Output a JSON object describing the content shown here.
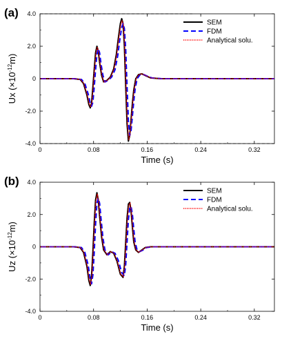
{
  "chart_data": [
    {
      "type": "line",
      "panel_label": "(a)",
      "xlabel": "Time (s)",
      "ylabel": "Ux (×10",
      "ylabel_exp": "-12",
      "ylabel_unit": "m)",
      "xlim": [
        0,
        0.35
      ],
      "ylim": [
        -4.0,
        4.0
      ],
      "xticks": [
        0,
        0.08,
        0.16,
        0.24,
        0.32
      ],
      "xtick_labels": [
        "0",
        "0.08",
        "0.16",
        "0.24",
        "0.32"
      ],
      "yticks": [
        -4.0,
        -2.0,
        0,
        2.0,
        4.0
      ],
      "ytick_labels": [
        "-4.0",
        "-2.0",
        "0",
        "2.0",
        "4.0"
      ],
      "legend_position": "top-right",
      "series": [
        {
          "name": "SEM",
          "color": "#000000",
          "style": "solid",
          "dt": 0,
          "x": [
            0,
            0.05,
            0.06,
            0.065,
            0.07,
            0.073,
            0.075,
            0.077,
            0.079,
            0.081,
            0.083,
            0.085,
            0.087,
            0.089,
            0.092,
            0.095,
            0.1,
            0.105,
            0.11,
            0.114,
            0.117,
            0.12,
            0.122,
            0.124,
            0.126,
            0.128,
            0.13,
            0.132,
            0.134,
            0.136,
            0.138,
            0.14,
            0.143,
            0.147,
            0.152,
            0.157,
            0.165,
            0.18,
            0.2,
            0.35
          ],
          "y": [
            0,
            0,
            -0.05,
            -0.3,
            -1.0,
            -1.6,
            -1.8,
            -1.5,
            -0.5,
            0.6,
            1.6,
            2.0,
            1.7,
            1.0,
            0.2,
            -0.2,
            -0.1,
            0.1,
            0.6,
            1.5,
            2.5,
            3.4,
            3.7,
            3.4,
            2.0,
            -0.5,
            -2.8,
            -3.85,
            -3.5,
            -2.5,
            -1.5,
            -0.7,
            0,
            0.25,
            0.3,
            0.2,
            0.05,
            0,
            0,
            0
          ]
        },
        {
          "name": "FDM",
          "color": "#0000ff",
          "style": "dashed",
          "dt": 0.002,
          "x": [
            0,
            0.05,
            0.06,
            0.065,
            0.07,
            0.073,
            0.075,
            0.077,
            0.079,
            0.081,
            0.083,
            0.085,
            0.087,
            0.089,
            0.092,
            0.095,
            0.1,
            0.105,
            0.11,
            0.114,
            0.117,
            0.12,
            0.122,
            0.124,
            0.126,
            0.128,
            0.13,
            0.132,
            0.134,
            0.136,
            0.138,
            0.14,
            0.143,
            0.147,
            0.152,
            0.157,
            0.165,
            0.18,
            0.2,
            0.35
          ],
          "y": [
            0,
            0,
            -0.05,
            -0.3,
            -0.95,
            -1.5,
            -1.7,
            -1.45,
            -0.5,
            0.55,
            1.5,
            1.85,
            1.6,
            0.95,
            0.2,
            -0.2,
            -0.1,
            0.1,
            0.55,
            1.4,
            2.35,
            3.15,
            3.4,
            3.1,
            1.8,
            -0.5,
            -2.6,
            -3.5,
            -3.2,
            -2.3,
            -1.4,
            -0.65,
            0,
            0.22,
            0.27,
            0.18,
            0.05,
            0,
            0,
            0
          ]
        },
        {
          "name": "Analytical solu.",
          "color": "#ff0000",
          "style": "dotted",
          "dt": 0.0005,
          "x": [
            0,
            0.05,
            0.06,
            0.065,
            0.07,
            0.073,
            0.075,
            0.077,
            0.079,
            0.081,
            0.083,
            0.085,
            0.087,
            0.089,
            0.092,
            0.095,
            0.1,
            0.105,
            0.11,
            0.114,
            0.117,
            0.12,
            0.122,
            0.124,
            0.126,
            0.128,
            0.13,
            0.132,
            0.134,
            0.136,
            0.138,
            0.14,
            0.143,
            0.147,
            0.152,
            0.157,
            0.165,
            0.18,
            0.2,
            0.35
          ],
          "y": [
            0,
            0,
            -0.05,
            -0.3,
            -1.0,
            -1.55,
            -1.75,
            -1.5,
            -0.5,
            0.6,
            1.55,
            1.95,
            1.65,
            1.0,
            0.2,
            -0.2,
            -0.1,
            0.1,
            0.6,
            1.45,
            2.45,
            3.3,
            3.6,
            3.3,
            1.95,
            -0.5,
            -2.75,
            -3.75,
            -3.4,
            -2.45,
            -1.5,
            -0.7,
            0,
            0.25,
            0.3,
            0.2,
            0.05,
            0,
            0,
            0
          ]
        }
      ]
    },
    {
      "type": "line",
      "panel_label": "(b)",
      "xlabel": "Time (s)",
      "ylabel": "Uz (×10",
      "ylabel_exp": "-12",
      "ylabel_unit": "m)",
      "xlim": [
        0,
        0.35
      ],
      "ylim": [
        -4.0,
        4.0
      ],
      "xticks": [
        0,
        0.08,
        0.16,
        0.24,
        0.32
      ],
      "xtick_labels": [
        "0",
        "0.08",
        "0.16",
        "0.24",
        "0.32"
      ],
      "yticks": [
        -4.0,
        -2.0,
        0,
        2.0,
        4.0
      ],
      "ytick_labels": [
        "-4.0",
        "-2.0",
        "0",
        "2.0",
        "4.0"
      ],
      "legend_position": "top-right",
      "series": [
        {
          "name": "SEM",
          "color": "#000000",
          "style": "solid",
          "dt": 0,
          "x": [
            0,
            0.05,
            0.06,
            0.065,
            0.07,
            0.073,
            0.075,
            0.077,
            0.079,
            0.081,
            0.083,
            0.085,
            0.087,
            0.089,
            0.092,
            0.095,
            0.1,
            0.105,
            0.11,
            0.115,
            0.12,
            0.124,
            0.126,
            0.128,
            0.13,
            0.132,
            0.134,
            0.136,
            0.138,
            0.14,
            0.143,
            0.147,
            0.152,
            0.157,
            0.165,
            0.18,
            0.2,
            0.35
          ],
          "y": [
            0,
            0,
            -0.05,
            -0.35,
            -1.2,
            -2.1,
            -2.4,
            -1.8,
            -0.3,
            1.5,
            2.9,
            3.35,
            2.9,
            1.9,
            0.6,
            -0.2,
            -0.5,
            -0.3,
            -0.4,
            -0.9,
            -1.7,
            -1.9,
            -1.2,
            0.3,
            1.8,
            2.65,
            2.75,
            2.2,
            1.2,
            0.3,
            -0.2,
            -0.35,
            -0.2,
            -0.05,
            0,
            0,
            0,
            0
          ]
        },
        {
          "name": "FDM",
          "color": "#0000ff",
          "style": "dashed",
          "dt": 0.002,
          "x": [
            0,
            0.05,
            0.06,
            0.065,
            0.07,
            0.073,
            0.075,
            0.077,
            0.079,
            0.081,
            0.083,
            0.085,
            0.087,
            0.089,
            0.092,
            0.095,
            0.1,
            0.105,
            0.11,
            0.115,
            0.12,
            0.124,
            0.126,
            0.128,
            0.13,
            0.132,
            0.134,
            0.136,
            0.138,
            0.14,
            0.143,
            0.147,
            0.152,
            0.157,
            0.165,
            0.18,
            0.2,
            0.35
          ],
          "y": [
            0,
            0,
            -0.05,
            -0.35,
            -1.15,
            -2.0,
            -2.3,
            -1.75,
            -0.3,
            1.4,
            2.7,
            3.0,
            2.7,
            1.8,
            0.55,
            -0.2,
            -0.5,
            -0.3,
            -0.4,
            -0.85,
            -1.6,
            -1.8,
            -1.1,
            0.3,
            1.7,
            2.4,
            2.5,
            2.0,
            1.1,
            0.3,
            -0.2,
            -0.3,
            -0.2,
            -0.05,
            0,
            0,
            0,
            0
          ]
        },
        {
          "name": "Analytical solu.",
          "color": "#ff0000",
          "style": "dotted",
          "dt": 0.0005,
          "x": [
            0,
            0.05,
            0.06,
            0.065,
            0.07,
            0.073,
            0.075,
            0.077,
            0.079,
            0.081,
            0.083,
            0.085,
            0.087,
            0.089,
            0.092,
            0.095,
            0.1,
            0.105,
            0.11,
            0.115,
            0.12,
            0.124,
            0.126,
            0.128,
            0.13,
            0.132,
            0.134,
            0.136,
            0.138,
            0.14,
            0.143,
            0.147,
            0.152,
            0.157,
            0.165,
            0.18,
            0.2,
            0.35
          ],
          "y": [
            0,
            0,
            -0.05,
            -0.35,
            -1.2,
            -2.05,
            -2.35,
            -1.8,
            -0.3,
            1.45,
            2.85,
            3.25,
            2.85,
            1.85,
            0.6,
            -0.2,
            -0.5,
            -0.3,
            -0.4,
            -0.9,
            -1.7,
            -1.85,
            -1.15,
            0.3,
            1.75,
            2.6,
            2.7,
            2.15,
            1.15,
            0.3,
            -0.2,
            -0.35,
            -0.2,
            -0.05,
            0,
            0,
            0,
            0
          ]
        }
      ]
    }
  ]
}
